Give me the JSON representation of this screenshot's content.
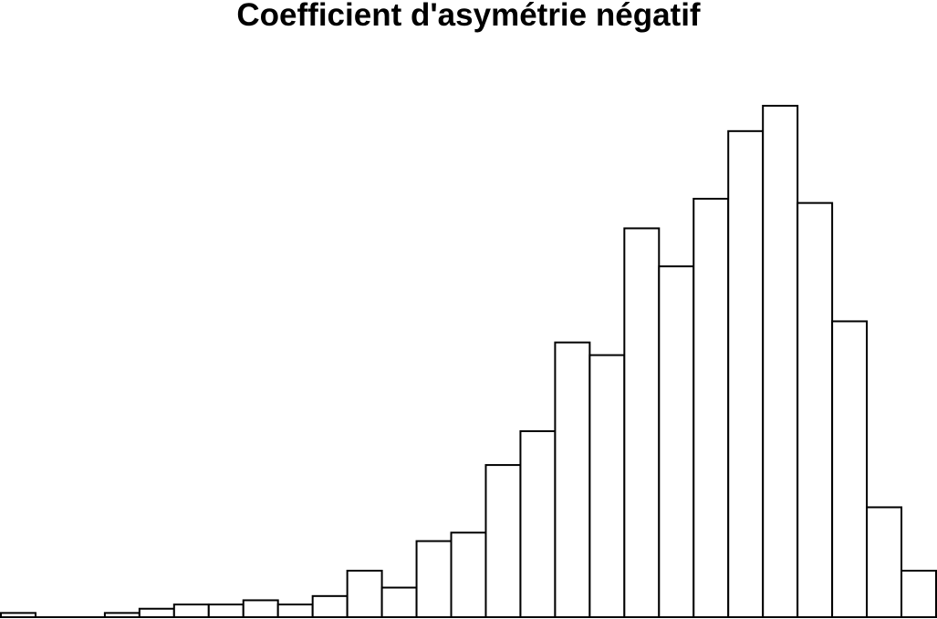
{
  "chart_data": {
    "type": "bar",
    "title": "Coefficient d'asymétrie négatif",
    "xlabel": "",
    "ylabel": "",
    "bar_values": [
      1,
      0,
      0,
      1,
      2,
      3,
      3,
      4,
      3,
      5,
      11,
      7,
      18,
      20,
      36,
      44,
      65,
      62,
      92,
      83,
      99,
      115,
      121,
      98,
      70,
      26,
      11
    ],
    "ylim": [
      0,
      121
    ],
    "grid": false,
    "axes_visible": false,
    "bar_fill": "#ffffff",
    "bar_stroke": "#000000"
  }
}
